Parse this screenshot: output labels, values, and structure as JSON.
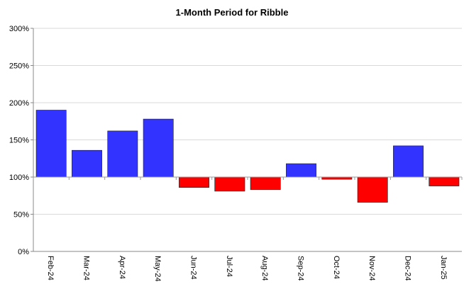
{
  "chart_data": {
    "type": "bar",
    "title": "1-Month Period for Ribble",
    "xlabel": "",
    "ylabel": "",
    "baseline": 100,
    "ylim": [
      0,
      300
    ],
    "y_ticks": [
      0,
      50,
      100,
      150,
      200,
      250,
      300
    ],
    "y_tick_labels": [
      "0%",
      "50%",
      "100%",
      "150%",
      "200%",
      "250%",
      "300%"
    ],
    "categories": [
      "Feb-24",
      "Mar-24",
      "Apr-24",
      "May-24",
      "Jun-24",
      "Jul-24",
      "Aug-24",
      "Sep-24",
      "Oct-24",
      "Nov-24",
      "Dec-24",
      "Jan-25"
    ],
    "values": [
      190,
      136,
      162,
      178,
      86,
      81,
      83,
      118,
      97,
      66,
      142,
      88
    ],
    "colors": {
      "up": "#3333ff",
      "down": "#ff0000"
    },
    "grid": true,
    "legend": "none"
  }
}
